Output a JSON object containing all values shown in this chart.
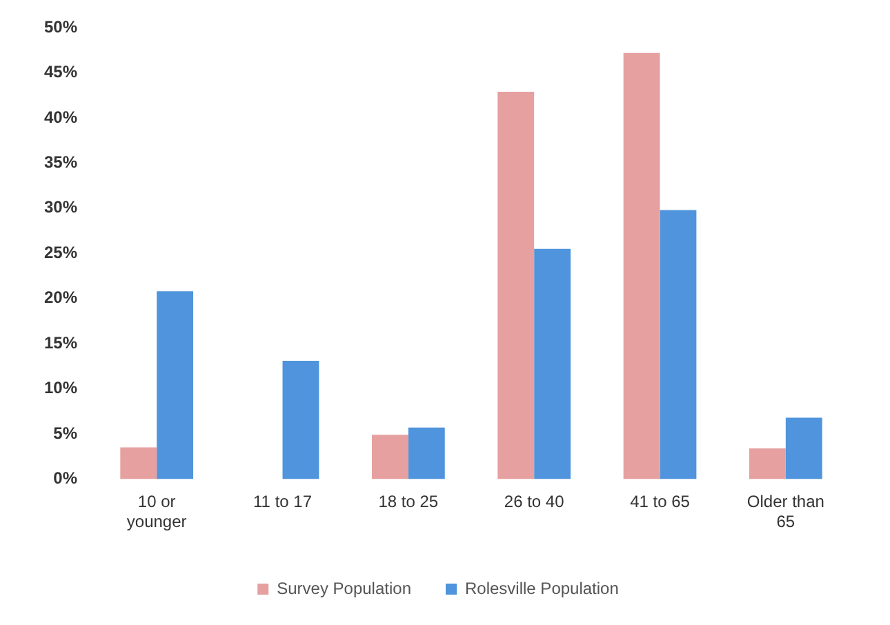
{
  "chart_data": {
    "type": "bar",
    "categories": [
      "10 or younger",
      "11 to 17",
      "18 to 25",
      "26 to 40",
      "41 to 65",
      "Older than 65"
    ],
    "series": [
      {
        "name": "Survey Population",
        "color": "#e6a0a0",
        "values": [
          3.5,
          0,
          4.9,
          42.9,
          47.2,
          3.4
        ]
      },
      {
        "name": "Rolesville Population",
        "color": "#4f94dc",
        "values": [
          20.8,
          13.1,
          5.7,
          25.5,
          29.8,
          6.8
        ]
      }
    ],
    "ylim": [
      0,
      50
    ],
    "yticks": [
      {
        "value": 0,
        "label": "0%"
      },
      {
        "value": 5,
        "label": "5%"
      },
      {
        "value": 10,
        "label": "10%"
      },
      {
        "value": 15,
        "label": "15%"
      },
      {
        "value": 20,
        "label": "20%"
      },
      {
        "value": 25,
        "label": "25%"
      },
      {
        "value": 30,
        "label": "30%"
      },
      {
        "value": 35,
        "label": "35%"
      },
      {
        "value": 40,
        "label": "40%"
      },
      {
        "value": 45,
        "label": "45%"
      },
      {
        "value": 50,
        "label": "50%"
      }
    ],
    "grid": false,
    "legend": "bottom"
  }
}
